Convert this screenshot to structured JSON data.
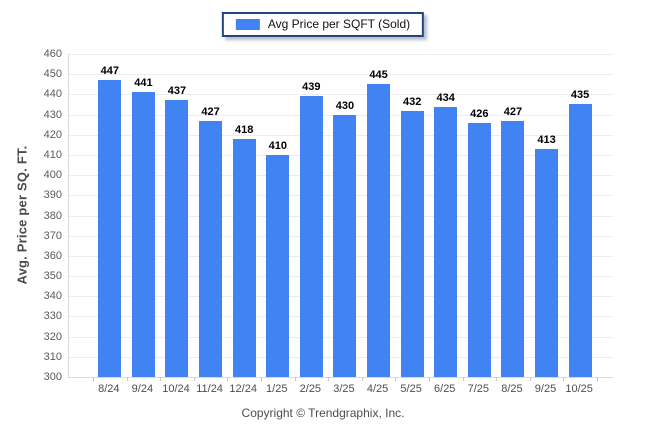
{
  "legend": {
    "label": "Avg Price per SQFT (Sold)",
    "swatch_color": "#4183f2"
  },
  "footer": {
    "copyright": "Copyright © Trendgraphix, Inc."
  },
  "chart_data": {
    "type": "bar",
    "title": "",
    "series_name": "Avg Price per SQFT (Sold)",
    "categories": [
      "8/24",
      "9/24",
      "10/24",
      "11/24",
      "12/24",
      "1/25",
      "2/25",
      "3/25",
      "4/25",
      "5/25",
      "6/25",
      "7/25",
      "8/25",
      "9/25",
      "10/25"
    ],
    "values": [
      447,
      441,
      437,
      427,
      418,
      410,
      439,
      430,
      445,
      432,
      434,
      426,
      427,
      413,
      435
    ],
    "xlabel": "",
    "ylabel": "Avg. Price per SQ. FT.",
    "ylim": [
      300,
      460
    ],
    "ytick_step": 10,
    "grid": true,
    "legend_position": "top-center",
    "bar_color": "#4183f2",
    "gridline_color": "#ececec",
    "axis_color": "#d9d9d9"
  }
}
